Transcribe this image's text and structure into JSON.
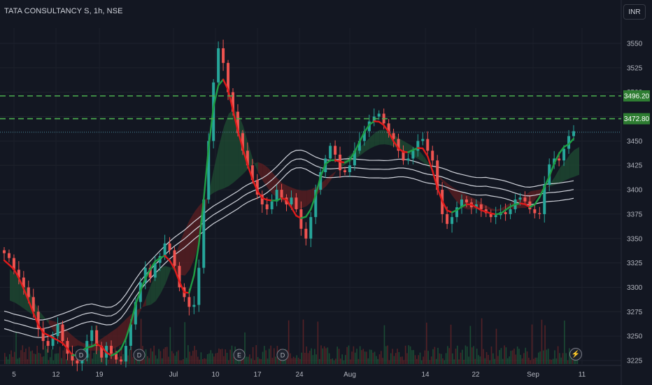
{
  "header": {
    "title": "TATA CONSULTANCY S, 1h, NSE",
    "currency": "INR"
  },
  "chart_data": {
    "type": "candlestick",
    "symbol": "TATA CONSULTANCY S",
    "interval": "1h",
    "exchange": "NSE",
    "currency": "INR",
    "x_labels": [
      "5",
      "12",
      "19",
      "Jul",
      "10",
      "17",
      "24",
      "Aug",
      "14",
      "22",
      "Sep",
      "11"
    ],
    "y_ticks": [
      3225,
      3250,
      3275,
      3300,
      3325,
      3350,
      3375,
      3400,
      3425,
      3450,
      3475,
      3500,
      3525,
      3550
    ],
    "y_range": [
      3220,
      3570
    ],
    "price_labels": [
      {
        "value": 3496.2,
        "text": "3496.20"
      },
      {
        "value": 3472.8,
        "text": "3472.80"
      }
    ],
    "last_price": 3459,
    "series": [
      {
        "name": "close",
        "values": [
          3335,
          3330,
          3318,
          3310,
          3300,
          3290,
          3275,
          3258,
          3245,
          3240,
          3250,
          3262,
          3245,
          3232,
          3225,
          3222,
          3228,
          3245,
          3256,
          3240,
          3228,
          3240,
          3232,
          3226,
          3224,
          3240,
          3262,
          3285,
          3305,
          3320,
          3310,
          3325,
          3332,
          3345,
          3338,
          3322,
          3300,
          3290,
          3280,
          3282,
          3320,
          3390,
          3450,
          3510,
          3545,
          3530,
          3500,
          3480,
          3458,
          3440,
          3425,
          3410,
          3395,
          3385,
          3380,
          3388,
          3400,
          3392,
          3385,
          3392,
          3380,
          3360,
          3350,
          3372,
          3400,
          3418,
          3432,
          3445,
          3436,
          3420,
          3418,
          3425,
          3440,
          3450,
          3460,
          3470,
          3475,
          3478,
          3468,
          3458,
          3452,
          3440,
          3430,
          3432,
          3440,
          3450,
          3452,
          3440,
          3430,
          3400,
          3375,
          3365,
          3372,
          3382,
          3390,
          3387,
          3382,
          3385,
          3380,
          3376,
          3372,
          3374,
          3377,
          3375,
          3380,
          3390,
          3392,
          3388,
          3380,
          3376,
          3375,
          3405,
          3426,
          3432,
          3430,
          3442,
          3455,
          3460
        ]
      }
    ],
    "events": [
      "D",
      "D",
      "E",
      "D"
    ]
  }
}
